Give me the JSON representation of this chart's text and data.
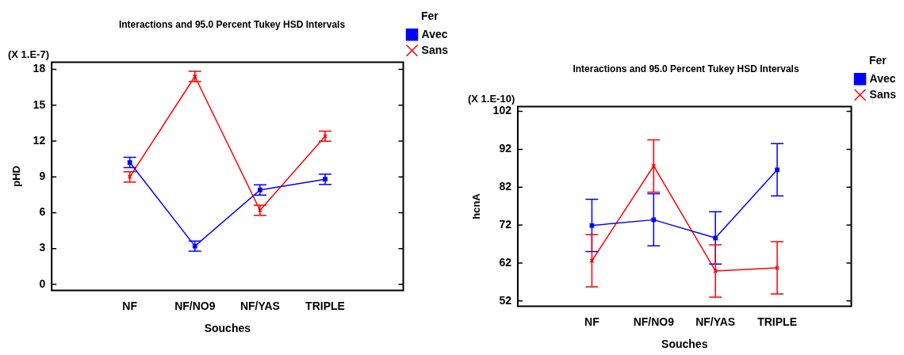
{
  "chart_data": [
    {
      "type": "line",
      "title": "Interactions and 95.0 Percent Tukey HSD Intervals",
      "xlabel": "Souches",
      "ylabel": "pHD",
      "legend_title": "Fer",
      "legend": "top right",
      "grid": false,
      "annotations": [
        "(X 1.E-7)"
      ],
      "categories": [
        "NF",
        "NF/NO9",
        "NF/YAS",
        "TRIPLE"
      ],
      "ylim": [
        -0.5,
        18.6
      ],
      "yticks": [
        0,
        3,
        6,
        9,
        12,
        15,
        18
      ],
      "series": [
        {
          "name": "Avec",
          "color": "#0000ff",
          "marker": "square",
          "values": [
            10.2,
            3.2,
            7.9,
            8.8
          ],
          "errors": [
            0.43,
            0.43,
            0.43,
            0.43
          ]
        },
        {
          "name": "Sans",
          "color": "#ff0000",
          "marker": "cross",
          "values": [
            9.0,
            17.4,
            6.2,
            12.4
          ],
          "errors": [
            0.43,
            0.43,
            0.43,
            0.43
          ]
        }
      ]
    },
    {
      "type": "line",
      "title": "Interactions and 95.0 Percent Tukey HSD Intervals",
      "xlabel": "Souches",
      "ylabel": "hcnA",
      "legend_title": "Fer",
      "legend": "top right",
      "grid": false,
      "annotations": [
        "(X 1.E-10)"
      ],
      "categories": [
        "NF",
        "NF/NO9",
        "NF/YAS",
        "TRIPLE"
      ],
      "ylim": [
        50.6,
        103.3
      ],
      "yticks": [
        52,
        62,
        72,
        82,
        92,
        102
      ],
      "series": [
        {
          "name": "Avec",
          "color": "#0000ff",
          "marker": "square",
          "values": [
            71.9,
            73.4,
            68.6,
            86.6
          ],
          "errors": [
            6.9,
            6.9,
            6.9,
            6.9
          ]
        },
        {
          "name": "Sans",
          "color": "#ff0000",
          "marker": "cross",
          "values": [
            62.6,
            87.6,
            59.9,
            60.7
          ],
          "errors": [
            6.9,
            6.9,
            6.9,
            6.9
          ]
        }
      ]
    }
  ]
}
